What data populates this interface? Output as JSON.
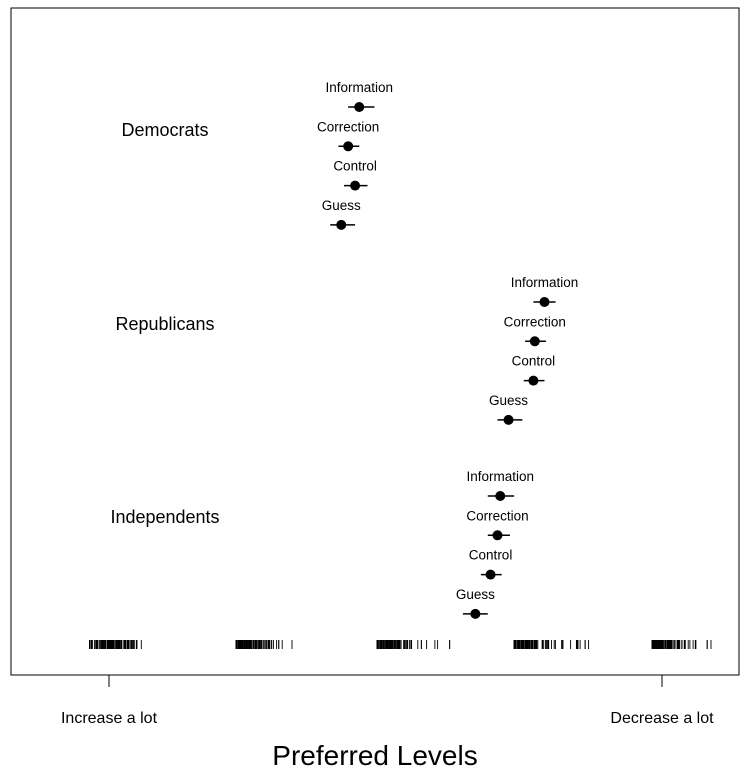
{
  "chart_data": {
    "type": "dot_whisker",
    "title": "",
    "xlabel": "Preferred Levels",
    "ylabel": "",
    "xlim": [
      0.8,
      5.2
    ],
    "xticks": [
      {
        "value": 1,
        "label": "Increase a lot"
      },
      {
        "value": 5,
        "label": "Decrease a lot"
      }
    ],
    "groups": [
      {
        "name": "Democrats",
        "points": [
          {
            "condition": "Information",
            "value": 2.81,
            "ci": [
              2.73,
              2.92
            ]
          },
          {
            "condition": "Correction",
            "value": 2.73,
            "ci": [
              2.66,
              2.81
            ]
          },
          {
            "condition": "Control",
            "value": 2.78,
            "ci": [
              2.7,
              2.87
            ]
          },
          {
            "condition": "Guess",
            "value": 2.68,
            "ci": [
              2.6,
              2.78
            ]
          }
        ]
      },
      {
        "name": "Republicans",
        "points": [
          {
            "condition": "Information",
            "value": 4.15,
            "ci": [
              4.07,
              4.23
            ]
          },
          {
            "condition": "Correction",
            "value": 4.08,
            "ci": [
              4.01,
              4.16
            ]
          },
          {
            "condition": "Control",
            "value": 4.07,
            "ci": [
              4.0,
              4.15
            ]
          },
          {
            "condition": "Guess",
            "value": 3.89,
            "ci": [
              3.81,
              3.99
            ]
          }
        ]
      },
      {
        "name": "Independents",
        "points": [
          {
            "condition": "Information",
            "value": 3.83,
            "ci": [
              3.74,
              3.93
            ]
          },
          {
            "condition": "Correction",
            "value": 3.81,
            "ci": [
              3.74,
              3.9
            ]
          },
          {
            "condition": "Control",
            "value": 3.76,
            "ci": [
              3.69,
              3.84
            ]
          },
          {
            "condition": "Guess",
            "value": 3.65,
            "ci": [
              3.56,
              3.74
            ]
          }
        ]
      }
    ],
    "rug_clusters": [
      {
        "center": 1,
        "from": 0.86,
        "to": 1.33
      },
      {
        "center": 2,
        "from": 1.92,
        "to": 2.36
      },
      {
        "center": 3,
        "from": 2.94,
        "to": 3.48
      },
      {
        "center": 4,
        "from": 3.93,
        "to": 4.48
      },
      {
        "center": 5,
        "from": 4.93,
        "to": 5.41
      }
    ]
  }
}
